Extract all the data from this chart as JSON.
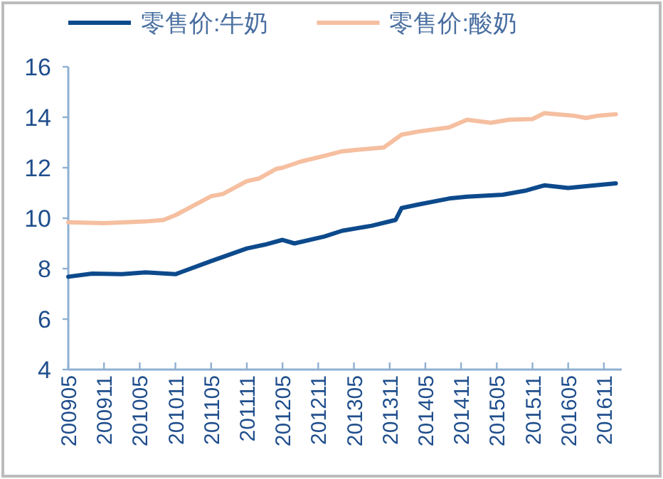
{
  "chart_data": {
    "type": "line",
    "legend": "top",
    "grid": false,
    "marker": "none",
    "line_style": "solid",
    "xlim": [
      "2009-05",
      "2017-02"
    ],
    "ylim": [
      4,
      16
    ],
    "yticks": [
      4,
      6,
      8,
      10,
      12,
      14,
      16
    ],
    "xticks": [
      {
        "value": "2009-05",
        "label": "200905"
      },
      {
        "value": "2009-11",
        "label": "200911"
      },
      {
        "value": "2010-05",
        "label": "201005"
      },
      {
        "value": "2010-11",
        "label": "201011"
      },
      {
        "value": "2011-05",
        "label": "201105"
      },
      {
        "value": "2011-11",
        "label": "201111"
      },
      {
        "value": "2012-05",
        "label": "201205"
      },
      {
        "value": "2012-11",
        "label": "201211"
      },
      {
        "value": "2013-05",
        "label": "201305"
      },
      {
        "value": "2013-11",
        "label": "201311"
      },
      {
        "value": "2014-05",
        "label": "201405"
      },
      {
        "value": "2014-11",
        "label": "201411"
      },
      {
        "value": "2015-05",
        "label": "201505"
      },
      {
        "value": "2015-11",
        "label": "201511"
      },
      {
        "value": "2016-05",
        "label": "201605"
      },
      {
        "value": "2016-11",
        "label": "201611"
      }
    ],
    "series": [
      {
        "name": "零售价:牛奶",
        "color": "#0d4a8c",
        "x": [
          "2009-05",
          "2009-09",
          "2010-02",
          "2010-06",
          "2010-11",
          "2011-05",
          "2011-11",
          "2012-02",
          "2012-05",
          "2012-07",
          "2012-12",
          "2013-03",
          "2013-08",
          "2013-12",
          "2014-01",
          "2014-04",
          "2014-09",
          "2014-12",
          "2015-06",
          "2015-10",
          "2016-01",
          "2016-05",
          "2016-08",
          "2017-01"
        ],
        "values": [
          7.68,
          7.8,
          7.78,
          7.85,
          7.78,
          8.3,
          8.8,
          8.95,
          9.14,
          9.0,
          9.27,
          9.5,
          9.7,
          9.93,
          10.4,
          10.55,
          10.78,
          10.85,
          10.93,
          11.1,
          11.3,
          11.2,
          11.27,
          11.38
        ]
      },
      {
        "name": "零售价:酸奶",
        "color": "#f5bfa0",
        "x": [
          "2009-05",
          "2009-11",
          "2010-06",
          "2010-09",
          "2010-11",
          "2011-05",
          "2011-07",
          "2011-11",
          "2012-01",
          "2012-04",
          "2012-05",
          "2012-08",
          "2012-12",
          "2013-03",
          "2013-05",
          "2013-10",
          "2014-01",
          "2014-04",
          "2014-09",
          "2014-12",
          "2015-04",
          "2015-07",
          "2015-11",
          "2016-01",
          "2016-06",
          "2016-08",
          "2016-10",
          "2017-01"
        ],
        "values": [
          9.84,
          9.8,
          9.87,
          9.93,
          10.12,
          10.87,
          10.96,
          11.47,
          11.57,
          11.96,
          12.0,
          12.24,
          12.47,
          12.65,
          12.7,
          12.8,
          13.31,
          13.44,
          13.6,
          13.9,
          13.78,
          13.9,
          13.93,
          14.16,
          14.06,
          13.97,
          14.06,
          14.12
        ]
      }
    ]
  }
}
